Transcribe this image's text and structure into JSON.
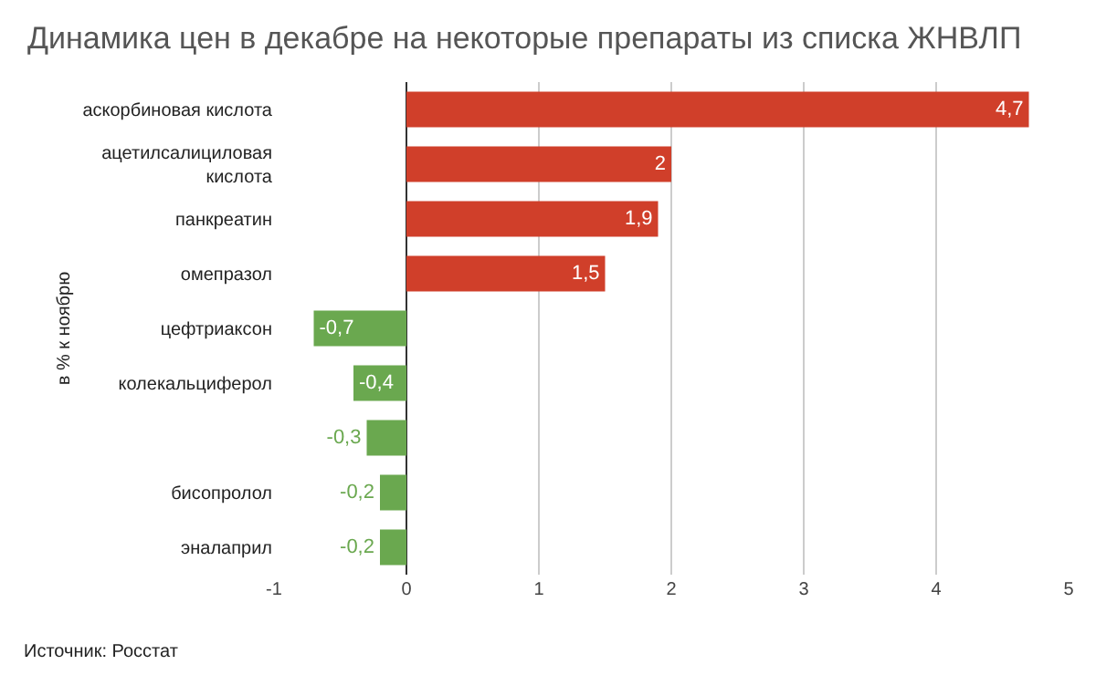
{
  "chart_data": {
    "type": "bar",
    "orientation": "horizontal",
    "title": "Динамика цен в декабре на некоторые препараты из списка ЖНВЛП",
    "ylabel": "в % к ноябрю",
    "categories": [
      "аскорбиновая кислота",
      "ацетилсалициловая кислота",
      "панкреатин",
      "омепразол",
      "цефтриаксон",
      "колекальциферол",
      null,
      "бисопролол",
      "эналаприл"
    ],
    "values": [
      4.7,
      2,
      1.9,
      1.5,
      -0.7,
      -0.4,
      -0.3,
      -0.2,
      -0.2
    ],
    "colors": [
      "#d03f2a",
      "#d03f2a",
      "#d03f2a",
      "#d03f2a",
      "#6aa84f",
      "#6aa84f",
      "#6aa84f",
      "#6aa84f",
      "#6aa84f"
    ],
    "value_labels": [
      "4,7",
      "2",
      "1,9",
      "1,5",
      "-0,7",
      "-0,4",
      "-0,3",
      "-0,2",
      "-0,2"
    ],
    "xlim": [
      -1,
      5
    ],
    "xticks": [
      -1,
      0,
      1,
      2,
      3,
      4,
      5
    ],
    "grid": "x",
    "annotations": [
      "Источник: Росстат"
    ]
  }
}
